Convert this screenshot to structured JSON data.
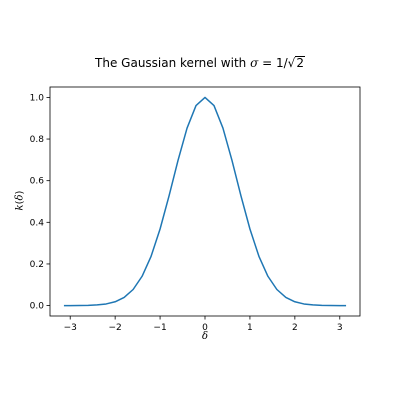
{
  "chart_data": {
    "type": "line",
    "title": {
      "prefix": "The Gaussian kernel with ",
      "sigma": "σ",
      "equals": " = 1/",
      "root_sign": "√",
      "root_arg": "2"
    },
    "xlabel": "δ",
    "ylabel": {
      "fn": "k",
      "open": "(",
      "arg": "δ",
      "close": ")"
    },
    "xlim": [
      -3.45,
      3.45
    ],
    "ylim": [
      -0.05,
      1.05
    ],
    "xticks": [
      -3,
      -2,
      -1,
      0,
      1,
      2,
      3
    ],
    "xtick_labels": [
      "−3",
      "−2",
      "−1",
      "0",
      "1",
      "2",
      "3"
    ],
    "yticks": [
      0.0,
      0.2,
      0.4,
      0.6,
      0.8,
      1.0
    ],
    "ytick_labels": [
      "0.0",
      "0.2",
      "0.4",
      "0.6",
      "0.8",
      "1.0"
    ],
    "grid": false,
    "series": [
      {
        "color": "#1f77b4",
        "x": [
          -3.14,
          -3.0,
          -2.8,
          -2.6,
          -2.4,
          -2.2,
          -2.0,
          -1.8,
          -1.6,
          -1.4,
          -1.2,
          -1.0,
          -0.8,
          -0.6,
          -0.4,
          -0.2,
          0.0,
          0.2,
          0.4,
          0.6,
          0.8,
          1.0,
          1.2,
          1.4,
          1.6,
          1.8,
          2.0,
          2.2,
          2.4,
          2.6,
          2.8,
          3.0,
          3.14
        ],
        "y": [
          0.0001,
          0.0001,
          0.0004,
          0.0012,
          0.0032,
          0.0079,
          0.0183,
          0.0392,
          0.0773,
          0.1409,
          0.2369,
          0.3679,
          0.5273,
          0.6977,
          0.8521,
          0.9608,
          1.0,
          0.9608,
          0.8521,
          0.6977,
          0.5273,
          0.3679,
          0.2369,
          0.1409,
          0.0773,
          0.0392,
          0.0183,
          0.0079,
          0.0032,
          0.0012,
          0.0004,
          0.0001,
          0.0001
        ]
      }
    ]
  }
}
